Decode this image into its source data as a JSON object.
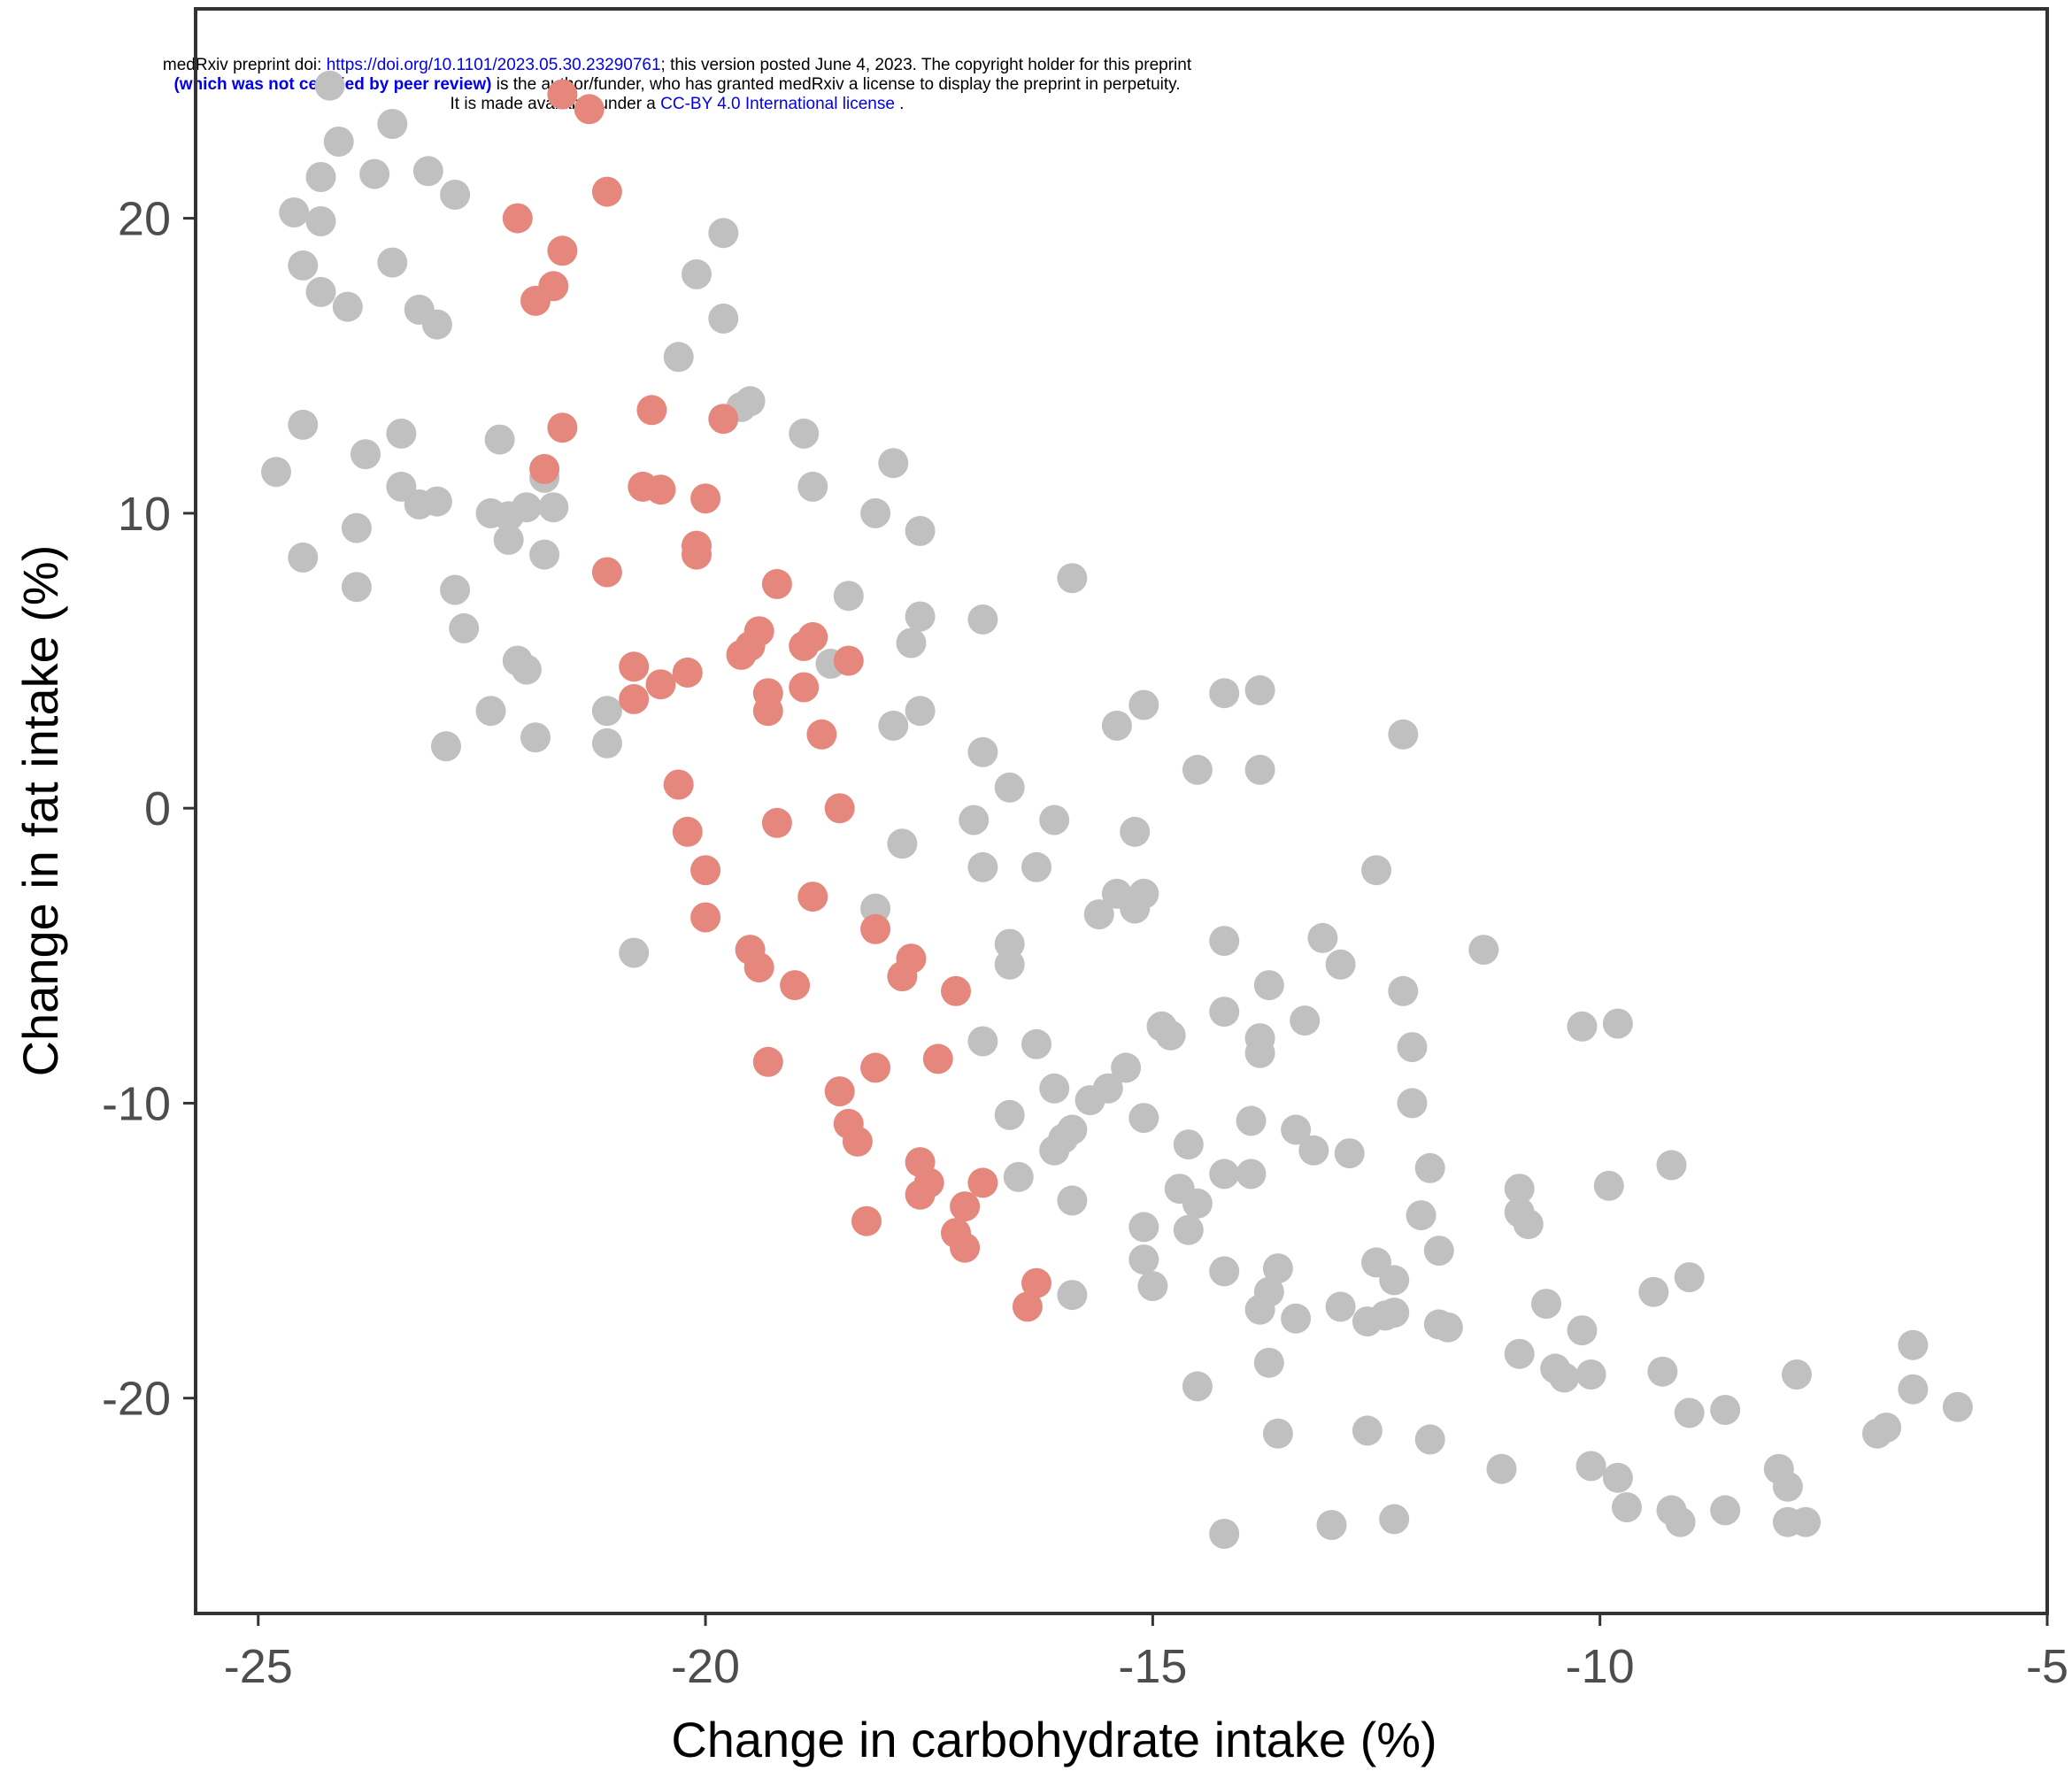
{
  "header": {
    "line1_prefix": "medRxiv preprint doi: ",
    "line1_doi": "https://doi.org/10.1101/2023.05.30.23290761",
    "line1_suffix": "; this version posted June 4, 2023. The copyright holder for this preprint",
    "line2_bold": "(which was not certified by peer review)",
    "line2_suffix": " is the author/funder, who has granted medRxiv a license to display the preprint in perpetuity.",
    "line3_prefix": "It is made available under a ",
    "line3_license": "CC-BY 4.0 International license",
    "line3_suffix": " ."
  },
  "chart_data": {
    "type": "scatter",
    "title": "",
    "xlabel": "Change in carbohydrate intake (%)",
    "ylabel": "Change in fat intake (%)",
    "xlim": [
      -25.7,
      -5.0
    ],
    "ylim": [
      -27.3,
      27.1
    ],
    "xticks": [
      -25,
      -20,
      -15,
      -10,
      -5
    ],
    "yticks": [
      -20,
      -10,
      0,
      10,
      20
    ],
    "xtick_labels": [
      "-25",
      "-20",
      "-15",
      "-10",
      "-5"
    ],
    "ytick_labels": [
      "-20",
      "-10",
      "0",
      "10",
      "20"
    ],
    "grid": false,
    "legend": "none",
    "colors": {
      "gray": "#c0c0c0",
      "red": "#e5877d"
    },
    "series": [
      {
        "color": "gray",
        "points": [
          [
            -24.2,
            24.5
          ],
          [
            -24.1,
            22.6
          ],
          [
            -24.3,
            21.4
          ],
          [
            -23.7,
            21.5
          ],
          [
            -23.5,
            23.2
          ],
          [
            -23.1,
            21.6
          ],
          [
            -22.8,
            20.8
          ],
          [
            -24.6,
            20.2
          ],
          [
            -24.3,
            19.9
          ],
          [
            -24.5,
            18.4
          ],
          [
            -24.3,
            17.5
          ],
          [
            -24.0,
            17.0
          ],
          [
            -23.5,
            18.5
          ],
          [
            -23.2,
            16.9
          ],
          [
            -23.0,
            16.4
          ],
          [
            -24.5,
            13.0
          ],
          [
            -24.8,
            11.4
          ],
          [
            -24.5,
            8.5
          ],
          [
            -23.9,
            9.5
          ],
          [
            -23.8,
            12.0
          ],
          [
            -23.4,
            12.7
          ],
          [
            -23.4,
            10.9
          ],
          [
            -23.2,
            10.3
          ],
          [
            -23.0,
            10.4
          ],
          [
            -23.9,
            7.5
          ],
          [
            -22.8,
            7.4
          ],
          [
            -22.7,
            6.1
          ],
          [
            -22.9,
            2.1
          ],
          [
            -22.4,
            3.3
          ],
          [
            -22.3,
            12.5
          ],
          [
            -22.4,
            10.0
          ],
          [
            -22.2,
            9.9
          ],
          [
            -22.2,
            9.1
          ],
          [
            -22.0,
            10.2
          ],
          [
            -21.8,
            11.2
          ],
          [
            -21.7,
            10.2
          ],
          [
            -21.8,
            8.6
          ],
          [
            -22.1,
            5.0
          ],
          [
            -22.0,
            4.7
          ],
          [
            -21.9,
            2.4
          ],
          [
            -21.1,
            3.3
          ],
          [
            -21.1,
            2.2
          ],
          [
            -20.8,
            -4.9
          ],
          [
            -20.3,
            15.3
          ],
          [
            -20.1,
            18.1
          ],
          [
            -19.8,
            19.5
          ],
          [
            -19.8,
            16.6
          ],
          [
            -19.6,
            13.6
          ],
          [
            -19.5,
            13.8
          ],
          [
            -18.9,
            12.7
          ],
          [
            -18.8,
            10.9
          ],
          [
            -18.1,
            10.0
          ],
          [
            -17.9,
            11.7
          ],
          [
            -17.6,
            9.4
          ],
          [
            -18.4,
            7.2
          ],
          [
            -18.6,
            4.9
          ],
          [
            -17.6,
            6.5
          ],
          [
            -17.7,
            5.6
          ],
          [
            -17.9,
            2.8
          ],
          [
            -17.6,
            3.3
          ],
          [
            -16.9,
            6.4
          ],
          [
            -16.9,
            1.9
          ],
          [
            -16.6,
            0.7
          ],
          [
            -17.0,
            -0.4
          ],
          [
            -17.8,
            -1.2
          ],
          [
            -16.3,
            -2.0
          ],
          [
            -16.9,
            -2.0
          ],
          [
            -16.6,
            -4.6
          ],
          [
            -16.6,
            -5.3
          ],
          [
            -18.1,
            -3.4
          ],
          [
            -16.1,
            -0.4
          ],
          [
            -15.9,
            7.8
          ],
          [
            -15.4,
            2.8
          ],
          [
            -15.1,
            3.5
          ],
          [
            -14.5,
            1.3
          ],
          [
            -14.2,
            3.9
          ],
          [
            -13.8,
            4.0
          ],
          [
            -13.8,
            1.3
          ],
          [
            -12.2,
            2.5
          ],
          [
            -15.2,
            -0.8
          ],
          [
            -15.6,
            -3.6
          ],
          [
            -15.4,
            -2.9
          ],
          [
            -15.2,
            -3.4
          ],
          [
            -15.1,
            -2.9
          ],
          [
            -14.2,
            -4.5
          ],
          [
            -14.2,
            -6.9
          ],
          [
            -13.7,
            -6.0
          ],
          [
            -13.8,
            -7.8
          ],
          [
            -13.8,
            -8.3
          ],
          [
            -13.3,
            -7.2
          ],
          [
            -12.5,
            -2.1
          ],
          [
            -13.1,
            -4.4
          ],
          [
            -12.9,
            -5.3
          ],
          [
            -11.3,
            -4.8
          ],
          [
            -12.2,
            -6.2
          ],
          [
            -12.1,
            -8.1
          ],
          [
            -10.2,
            -7.4
          ],
          [
            -9.8,
            -7.3
          ],
          [
            -16.9,
            -7.9
          ],
          [
            -16.3,
            -8.0
          ],
          [
            -16.1,
            -9.5
          ],
          [
            -15.7,
            -9.9
          ],
          [
            -15.5,
            -9.5
          ],
          [
            -15.3,
            -8.8
          ],
          [
            -14.9,
            -7.4
          ],
          [
            -14.8,
            -7.7
          ],
          [
            -16.6,
            -10.4
          ],
          [
            -16.1,
            -11.6
          ],
          [
            -16.0,
            -11.2
          ],
          [
            -15.9,
            -10.9
          ],
          [
            -15.1,
            -10.5
          ],
          [
            -14.6,
            -11.4
          ],
          [
            -14.7,
            -12.9
          ],
          [
            -14.5,
            -13.4
          ],
          [
            -14.6,
            -14.3
          ],
          [
            -14.2,
            -12.4
          ],
          [
            -13.9,
            -12.4
          ],
          [
            -13.9,
            -10.6
          ],
          [
            -13.4,
            -10.9
          ],
          [
            -13.2,
            -11.6
          ],
          [
            -16.5,
            -12.5
          ],
          [
            -15.9,
            -13.3
          ],
          [
            -15.1,
            -14.2
          ],
          [
            -15.1,
            -15.3
          ],
          [
            -15.0,
            -16.2
          ],
          [
            -14.2,
            -15.7
          ],
          [
            -15.9,
            -16.5
          ],
          [
            -14.5,
            -19.6
          ],
          [
            -14.2,
            -24.6
          ],
          [
            -13.8,
            -17.0
          ],
          [
            -13.7,
            -16.4
          ],
          [
            -13.6,
            -15.6
          ],
          [
            -13.4,
            -17.3
          ],
          [
            -13.7,
            -18.8
          ],
          [
            -13.6,
            -21.2
          ],
          [
            -12.8,
            -11.7
          ],
          [
            -12.1,
            -10.0
          ],
          [
            -11.9,
            -12.2
          ],
          [
            -12.0,
            -13.8
          ],
          [
            -11.8,
            -15.0
          ],
          [
            -12.5,
            -15.4
          ],
          [
            -12.3,
            -16.0
          ],
          [
            -12.6,
            -17.4
          ],
          [
            -12.4,
            -17.2
          ],
          [
            -12.3,
            -17.1
          ],
          [
            -12.9,
            -16.9
          ],
          [
            -11.8,
            -17.5
          ],
          [
            -11.7,
            -17.6
          ],
          [
            -13.0,
            -24.3
          ],
          [
            -12.6,
            -21.1
          ],
          [
            -11.9,
            -21.4
          ],
          [
            -12.3,
            -24.1
          ],
          [
            -11.1,
            -22.4
          ],
          [
            -10.9,
            -18.5
          ],
          [
            -10.9,
            -12.9
          ],
          [
            -10.9,
            -13.7
          ],
          [
            -10.8,
            -14.1
          ],
          [
            -10.6,
            -16.8
          ],
          [
            -10.5,
            -19.0
          ],
          [
            -10.4,
            -19.3
          ],
          [
            -10.2,
            -17.7
          ],
          [
            -10.1,
            -19.2
          ],
          [
            -10.1,
            -22.3
          ],
          [
            -9.9,
            -12.8
          ],
          [
            -9.8,
            -22.7
          ],
          [
            -9.7,
            -23.7
          ],
          [
            -9.4,
            -16.4
          ],
          [
            -9.3,
            -19.1
          ],
          [
            -9.2,
            -12.1
          ],
          [
            -9.2,
            -23.8
          ],
          [
            -9.1,
            -24.2
          ],
          [
            -9.0,
            -20.5
          ],
          [
            -9.0,
            -15.9
          ],
          [
            -8.6,
            -20.4
          ],
          [
            -8.6,
            -23.8
          ],
          [
            -8.0,
            -22.4
          ],
          [
            -7.9,
            -23.0
          ],
          [
            -7.9,
            -24.2
          ],
          [
            -7.8,
            -19.2
          ],
          [
            -7.7,
            -24.2
          ],
          [
            -6.9,
            -21.2
          ],
          [
            -6.8,
            -21.0
          ],
          [
            -6.5,
            -18.2
          ],
          [
            -6.5,
            -19.7
          ],
          [
            -6.0,
            -20.3
          ]
        ]
      },
      {
        "color": "red",
        "points": [
          [
            -21.6,
            24.2
          ],
          [
            -21.3,
            23.7
          ],
          [
            -21.1,
            20.9
          ],
          [
            -22.1,
            20.0
          ],
          [
            -21.6,
            18.9
          ],
          [
            -21.7,
            17.7
          ],
          [
            -21.9,
            17.2
          ],
          [
            -20.6,
            13.5
          ],
          [
            -19.8,
            13.2
          ],
          [
            -21.6,
            12.9
          ],
          [
            -21.8,
            11.5
          ],
          [
            -20.7,
            10.9
          ],
          [
            -20.5,
            10.8
          ],
          [
            -20.0,
            10.5
          ],
          [
            -20.1,
            8.9
          ],
          [
            -20.1,
            8.6
          ],
          [
            -21.1,
            8.0
          ],
          [
            -19.2,
            7.6
          ],
          [
            -19.4,
            6.0
          ],
          [
            -19.5,
            5.5
          ],
          [
            -19.6,
            5.2
          ],
          [
            -18.8,
            5.8
          ],
          [
            -18.9,
            5.5
          ],
          [
            -18.4,
            5.0
          ],
          [
            -20.8,
            4.8
          ],
          [
            -20.5,
            4.2
          ],
          [
            -20.2,
            4.6
          ],
          [
            -20.8,
            3.7
          ],
          [
            -19.3,
            3.9
          ],
          [
            -19.3,
            3.3
          ],
          [
            -18.9,
            4.1
          ],
          [
            -18.7,
            2.5
          ],
          [
            -20.3,
            0.8
          ],
          [
            -18.5,
            0.0
          ],
          [
            -19.2,
            -0.5
          ],
          [
            -20.2,
            -0.8
          ],
          [
            -20.0,
            -2.1
          ],
          [
            -18.8,
            -3.0
          ],
          [
            -20.0,
            -3.7
          ],
          [
            -18.1,
            -4.1
          ],
          [
            -19.5,
            -4.8
          ],
          [
            -19.4,
            -5.4
          ],
          [
            -17.8,
            -5.7
          ],
          [
            -17.7,
            -5.1
          ],
          [
            -19.0,
            -6.0
          ],
          [
            -17.2,
            -6.2
          ],
          [
            -19.3,
            -8.6
          ],
          [
            -18.1,
            -8.8
          ],
          [
            -17.4,
            -8.5
          ],
          [
            -18.5,
            -9.6
          ],
          [
            -18.4,
            -10.7
          ],
          [
            -18.3,
            -11.3
          ],
          [
            -17.6,
            -12.0
          ],
          [
            -17.5,
            -12.7
          ],
          [
            -17.6,
            -13.1
          ],
          [
            -17.1,
            -13.5
          ],
          [
            -16.9,
            -12.7
          ],
          [
            -17.2,
            -14.4
          ],
          [
            -17.1,
            -14.9
          ],
          [
            -18.2,
            -14.0
          ],
          [
            -16.3,
            -16.1
          ],
          [
            -16.4,
            -16.9
          ]
        ]
      }
    ]
  }
}
